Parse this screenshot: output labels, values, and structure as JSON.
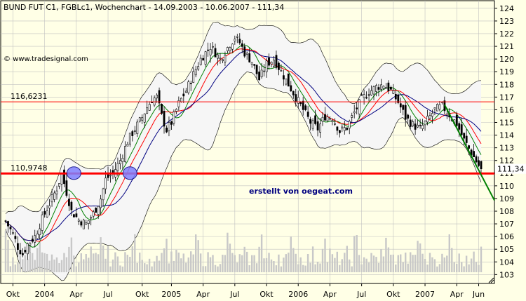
{
  "title": "BUND FUT C1, FGBLc1, Wochenchart - 14.09.2003 - 10.06.2007 - 111,34",
  "copyright": "© www.tradesignal.com",
  "annotation": "erstellt von oegeat.com",
  "colors": {
    "background": "#FFFFE6",
    "bollinger_band_fill": "#F6F6F6",
    "grid": "#C0C0C0",
    "up_candle": "#FFFFFF",
    "down_candle": "#000000",
    "level_line": "#FF0000",
    "trend_line": "#008000",
    "ma_short": "#008000",
    "ma_mid": "#FF0000",
    "ma_long": "#000080",
    "volume": "#C8C8C8",
    "annotation_text": "#000080",
    "marker_fill": "#8080FF"
  },
  "chart_data": {
    "type": "candlestick",
    "title": "BUND FUT C1, FGBLc1, Wochenchart - 14.09.2003 - 10.06.2007 - 111,34",
    "yaxis": {
      "position": "right",
      "ylim": [
        102.3,
        124.6
      ],
      "ticks": [
        "103",
        "104",
        "105",
        "106",
        "107",
        "108",
        "109",
        "110",
        "111",
        "112",
        "113",
        "114",
        "115",
        "116",
        "117",
        "118",
        "119",
        "120",
        "121",
        "122",
        "123",
        "124"
      ],
      "last_value_label": "111,34"
    },
    "xaxis": {
      "ticks": [
        "Okt",
        "2004",
        "Apr",
        "Jul",
        "Okt",
        "2005",
        "Apr",
        "Jul",
        "Okt",
        "2006",
        "Apr",
        "Jul",
        "Okt",
        "2007",
        "Apr",
        "Jun"
      ],
      "tick_week_index": [
        3,
        16,
        29,
        42,
        56,
        68,
        81,
        94,
        107,
        120,
        133,
        146,
        159,
        172,
        185,
        194
      ]
    },
    "weeks": 196,
    "price_key_points": [
      [
        0,
        107.2
      ],
      [
        3,
        106.2
      ],
      [
        5,
        105.2
      ],
      [
        7,
        104.6
      ],
      [
        9,
        105.4
      ],
      [
        12,
        106.0
      ],
      [
        15,
        107.4
      ],
      [
        18,
        108.6
      ],
      [
        21,
        109.8
      ],
      [
        23,
        110.9
      ],
      [
        25,
        109.5
      ],
      [
        27,
        108.0
      ],
      [
        30,
        107.3
      ],
      [
        33,
        107.0
      ],
      [
        36,
        107.8
      ],
      [
        39,
        109.0
      ],
      [
        41,
        110.5
      ],
      [
        44,
        111.0
      ],
      [
        47,
        112.0
      ],
      [
        50,
        113.5
      ],
      [
        53,
        114.5
      ],
      [
        56,
        115.4
      ],
      [
        58,
        116.2
      ],
      [
        60,
        116.8
      ],
      [
        62,
        117.0
      ],
      [
        64,
        115.5
      ],
      [
        66,
        114.4
      ],
      [
        68,
        115.0
      ],
      [
        71,
        116.5
      ],
      [
        74,
        117.5
      ],
      [
        77,
        118.8
      ],
      [
        80,
        120.0
      ],
      [
        84,
        121.0
      ],
      [
        88,
        120.0
      ],
      [
        92,
        121.2
      ],
      [
        94,
        121.7
      ],
      [
        96,
        121.3
      ],
      [
        98,
        120.5
      ],
      [
        101,
        119.8
      ],
      [
        104,
        118.4
      ],
      [
        107,
        119.6
      ],
      [
        110,
        120.0
      ],
      [
        113,
        119.0
      ],
      [
        116,
        118.0
      ],
      [
        119,
        117.0
      ],
      [
        122,
        116.0
      ],
      [
        125,
        115.0
      ],
      [
        128,
        114.5
      ],
      [
        131,
        115.5
      ],
      [
        134,
        115.4
      ],
      [
        137,
        114.3
      ],
      [
        140,
        114.6
      ],
      [
        143,
        115.8
      ],
      [
        146,
        116.8
      ],
      [
        149,
        117.4
      ],
      [
        152,
        117.8
      ],
      [
        155,
        118.0
      ],
      [
        158,
        117.5
      ],
      [
        161,
        116.6
      ],
      [
        164,
        115.4
      ],
      [
        167,
        114.8
      ],
      [
        170,
        114.5
      ],
      [
        173,
        115.2
      ],
      [
        176,
        116.0
      ],
      [
        179,
        116.3
      ],
      [
        182,
        115.6
      ],
      [
        185,
        114.9
      ],
      [
        188,
        113.6
      ],
      [
        191,
        112.6
      ],
      [
        194,
        111.6
      ],
      [
        195,
        111.3
      ]
    ],
    "horizontal_levels": [
      {
        "label": "116,6231",
        "value": 116.6231
      },
      {
        "label": "110,9748",
        "value": 110.9748
      }
    ],
    "trend_line": [
      [
        180,
        116.4
      ],
      [
        196,
        110.5
      ]
    ],
    "markers": [
      {
        "week": 28,
        "value": 111.0
      },
      {
        "week": 51,
        "value": 111.0
      }
    ],
    "indicators": [
      "Bollinger Bands",
      "Moving Average (short)",
      "Moving Average (medium)",
      "Moving Average (long)",
      "Volume"
    ],
    "grid": true
  }
}
